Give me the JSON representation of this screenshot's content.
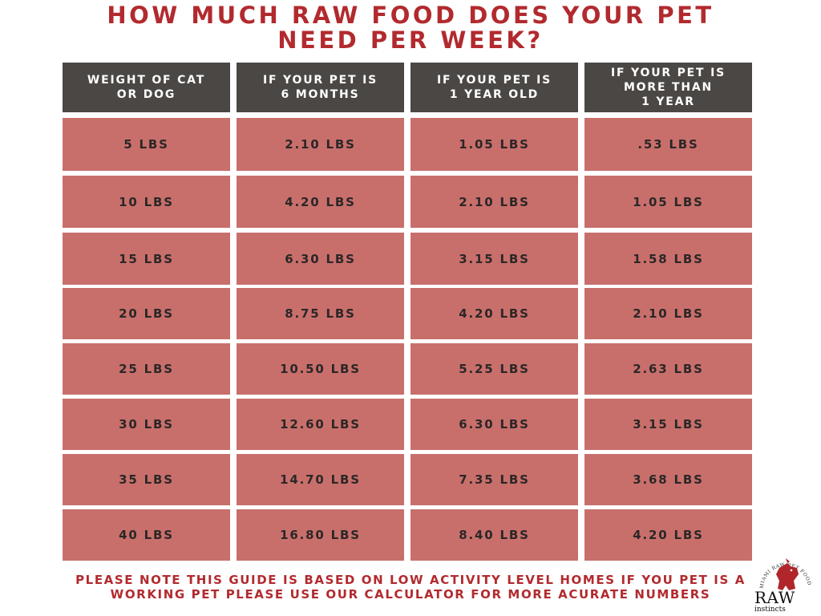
{
  "title": {
    "line1": "HOW MUCH RAW FOOD DOES YOUR PET",
    "line2": "NEED PER WEEK?"
  },
  "table": {
    "headers": [
      {
        "line1": "WEIGHT OF CAT",
        "line2": "OR DOG",
        "line3": ""
      },
      {
        "line1": "IF YOUR PET IS",
        "line2": "6 MONTHS",
        "line3": ""
      },
      {
        "line1": "IF YOUR PET IS",
        "line2": "1 YEAR OLD",
        "line3": ""
      },
      {
        "line1": "IF YOUR PET IS",
        "line2": "MORE THAN",
        "line3": "1 YEAR"
      }
    ],
    "rows": [
      [
        "5 LBS",
        "2.10 LBS",
        "1.05 LBS",
        ".53 LBS"
      ],
      [
        "10 LBS",
        "4.20 LBS",
        "2.10 LBS",
        "1.05 LBS"
      ],
      [
        "15 LBS",
        "6.30 LBS",
        "3.15 LBS",
        "1.58 LBS"
      ],
      [
        "20 LBS",
        "8.75 LBS",
        "4.20 LBS",
        "2.10 LBS"
      ],
      [
        "25 LBS",
        "10.50 LBS",
        "5.25 LBS",
        "2.63 LBS"
      ],
      [
        "30 LBS",
        "12.60 LBS",
        "6.30 LBS",
        "3.15 LBS"
      ],
      [
        "35 LBS",
        "14.70 LBS",
        "7.35 LBS",
        "3.68 LBS"
      ],
      [
        "40 LBS",
        "16.80 LBS",
        "8.40 LBS",
        "4.20 LBS"
      ]
    ]
  },
  "note": {
    "line1": "PLEASE NOTE THIS GUIDE IS BASED ON LOW ACTIVITY LEVEL HOMES IF YOU PET IS A",
    "line2": "WORKING PET PLEASE USE OUR CALCULATOR FOR MORE ACURATE NUMBERS"
  },
  "logo": {
    "word": "RAW",
    "sub": "instincts",
    "ring_text": "MIAMI RAW PET FOOD COMPANY",
    "icon": "dog-head-icon"
  },
  "colors": {
    "title_red": "#b22a2e",
    "header_bg": "#4a4744",
    "cell_bg": "#c86f6c"
  }
}
